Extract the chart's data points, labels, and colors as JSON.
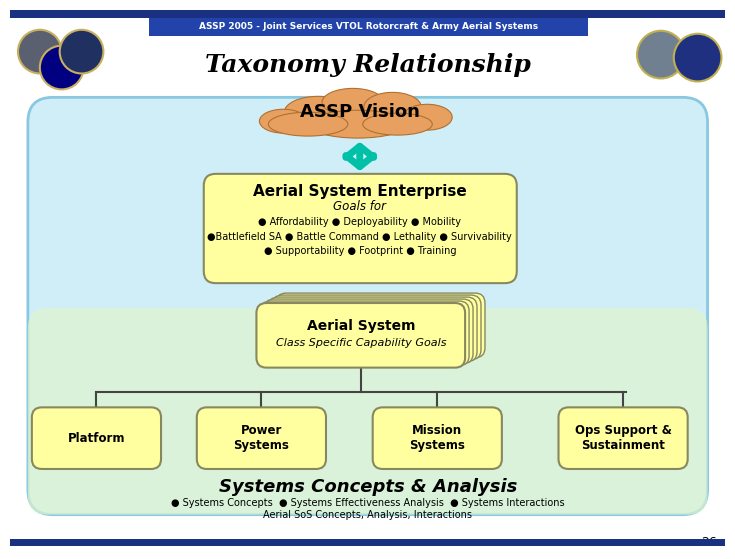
{
  "title": "Taxonomy Relationship",
  "header_text": "ASSP 2005 - Joint Services VTOL Rotorcraft & Army Aerial Systems",
  "header_bg": "#2244aa",
  "header_text_color": "#ffffff",
  "slide_bg": "#ffffff",
  "main_bg_top": "#c8eef8",
  "main_bg_bottom": "#e8f8d0",
  "title_font_size": 18,
  "cloud_color": "#e8a060",
  "cloud_edge_color": "#b07030",
  "cloud_text": "ASSP Vision",
  "cloud_text_color": "#000000",
  "cloud_text_size": 13,
  "box_fill": "#ffffa0",
  "box_edge": "#888860",
  "enterprise_title": "Aerial System Enterprise",
  "enterprise_subtitle": "Goals for",
  "enterprise_line1": "● Affordability ● Deployability ● Mobility",
  "enterprise_line2": "●Battlefield SA ● Battle Command ● Lethality ● Survivability",
  "enterprise_line3": "● Supportability ● Footprint ● Training",
  "aerial_system_title": "Aerial System",
  "aerial_system_subtitle": "Class Specific Capability Goals",
  "bottom_boxes": [
    "Platform",
    "Power\nSystems",
    "Mission\nSystems",
    "Ops Support &\nSustainment"
  ],
  "systems_title": "Systems Concepts & Analysis",
  "systems_line1": "● Systems Concepts  ● Systems Effectiveness Analysis  ● Systems Interactions",
  "systems_line2": "Aerial SoS Concepts, Analysis, Interactions",
  "arrow_color": "#00c0a8",
  "line_color": "#444444",
  "page_number": "26",
  "blue_bar_color": "#1a3080"
}
